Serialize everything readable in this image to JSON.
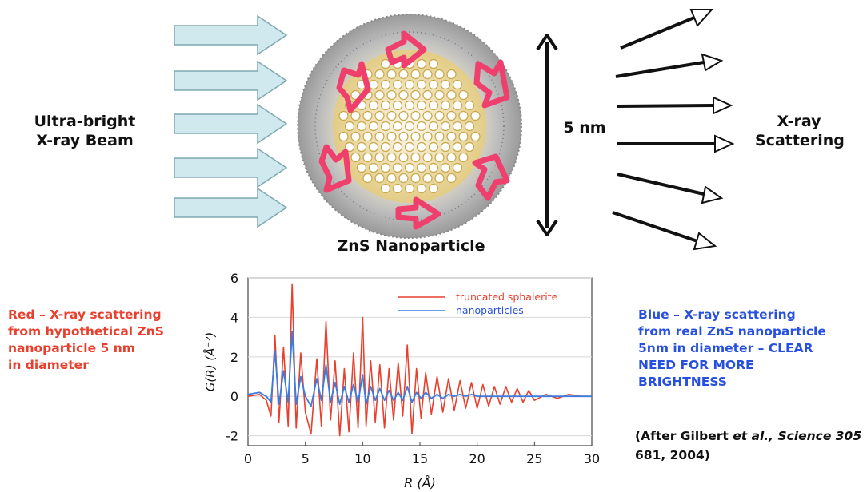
{
  "diagram": {
    "beam_label_line1": "Ultra-bright",
    "beam_label_line2": "X-ray Beam",
    "particle_label": "ZnS Nanoparticle",
    "size_label": "5 nm",
    "scatter_label_line1": "X-ray",
    "scatter_label_line2": "Scattering",
    "red_note": [
      "Red – X-ray scattering",
      "from hypothetical ZnS",
      "nanoparticle 5 nm",
      "in diameter"
    ],
    "blue_note": [
      "Blue – X-ray scattering",
      "from real ZnS nanoparticle",
      "5nm in diameter – CLEAR",
      "NEED FOR MORE",
      "BRIGHTNESS"
    ],
    "citation": {
      "open": "(After Gilbert ",
      "etal": "et al., Science 305",
      "line2": "681, 2004)"
    },
    "colors": {
      "beam_fill": "#cfe9ef",
      "beam_stroke": "#7fa8b0",
      "pink": "#ef3f6d",
      "red": "#e8402e",
      "blue": "#2850e0"
    }
  },
  "chart_data": {
    "type": "line",
    "xlabel": "R (Å)",
    "ylabel": "G(R) (Å⁻²)",
    "xlim": [
      0,
      30
    ],
    "ylim": [
      -2.5,
      6
    ],
    "x_ticks": [
      "0",
      "5",
      "10",
      "15",
      "20",
      "25",
      "30"
    ],
    "y_ticks": [
      "6",
      "4",
      "2",
      "0",
      "-2"
    ],
    "legend_position": "top-right",
    "series": [
      {
        "name": "truncated sphalerite",
        "color": "#e8402e",
        "x": [
          0,
          1,
          1.6,
          2,
          2.35,
          2.7,
          3.1,
          3.5,
          3.85,
          4.2,
          4.6,
          5,
          5.5,
          6,
          6.4,
          6.8,
          7.2,
          7.6,
          8,
          8.4,
          8.8,
          9.2,
          9.6,
          10,
          10.3,
          10.7,
          11.1,
          11.5,
          11.9,
          12.3,
          12.7,
          13.1,
          13.5,
          13.9,
          14.3,
          14.7,
          15.1,
          15.5,
          16,
          16.5,
          17,
          17.5,
          18,
          18.5,
          19,
          19.5,
          20,
          20.5,
          21,
          21.5,
          22,
          22.5,
          23,
          23.5,
          24,
          24.5,
          25,
          26,
          27,
          28,
          29,
          30
        ],
        "y": [
          0,
          0.1,
          -0.2,
          -1,
          3.1,
          -1.3,
          2.5,
          -1.5,
          5.7,
          -1.6,
          2.2,
          -0.8,
          -1.9,
          1.9,
          -1.5,
          3.8,
          -1.2,
          1.8,
          -2,
          1.4,
          -1.8,
          2.2,
          -1.6,
          4,
          -1.5,
          1.8,
          -1.3,
          1.6,
          -1.6,
          1.4,
          -1.2,
          1.7,
          -1,
          2.6,
          -1.9,
          1.4,
          -1.1,
          1.2,
          -0.9,
          1,
          -0.8,
          0.9,
          -0.7,
          0.8,
          -0.6,
          0.7,
          -0.6,
          0.6,
          -0.5,
          0.5,
          -0.4,
          0.5,
          -0.3,
          0.4,
          -0.3,
          0.3,
          -0.2,
          0.1,
          -0.1,
          0.1,
          0,
          0
        ]
      },
      {
        "name": "nanoparticles",
        "color": "#3a7de0",
        "x": [
          0,
          1,
          1.6,
          2,
          2.35,
          2.7,
          3.1,
          3.5,
          3.85,
          4.2,
          4.6,
          5,
          5.5,
          6,
          6.4,
          6.8,
          7.2,
          7.6,
          8,
          8.4,
          8.8,
          9.2,
          9.6,
          10,
          10.3,
          10.7,
          11.1,
          11.5,
          11.9,
          12.3,
          12.7,
          13.1,
          13.5,
          13.9,
          14.3,
          14.7,
          15.1,
          15.5,
          16,
          16.5,
          17,
          17.5,
          18,
          18.5,
          19,
          19.5,
          20,
          20.5,
          21,
          21.5,
          22,
          22.5,
          23,
          23.5,
          24,
          24.5,
          25,
          26,
          27,
          28,
          29,
          30
        ],
        "y": [
          0.1,
          0.2,
          0,
          -0.3,
          2.3,
          -0.4,
          1.3,
          -0.3,
          3.3,
          -0.4,
          1,
          0,
          -0.5,
          0.9,
          -0.2,
          1.6,
          -0.3,
          0.7,
          -0.4,
          0.5,
          -0.3,
          0.6,
          -0.3,
          1.1,
          -0.4,
          0.5,
          -0.2,
          0.4,
          -0.2,
          0.3,
          -0.2,
          0.2,
          -0.2,
          0.5,
          -0.3,
          0.2,
          -0.1,
          0.2,
          -0.1,
          0.1,
          -0.1,
          0.1,
          0,
          0.1,
          0,
          0.1,
          0,
          0,
          0,
          0,
          0,
          0,
          0,
          0,
          0,
          0,
          0,
          0,
          0,
          0,
          0,
          0
        ]
      }
    ]
  }
}
